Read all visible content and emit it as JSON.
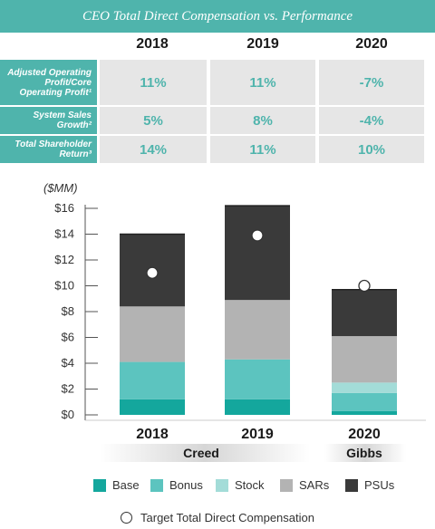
{
  "banner": {
    "title": "CEO Total Direct Compensation vs. Performance"
  },
  "performance_table": {
    "years": [
      "2018",
      "2019",
      "2020"
    ],
    "rows": [
      {
        "label": "Adjusted Operating Profit/Core Operating Profit¹",
        "values": [
          "11%",
          "11%",
          "-7%"
        ]
      },
      {
        "label": "System Sales Growth²",
        "values": [
          "5%",
          "8%",
          "-4%"
        ]
      },
      {
        "label": "Total Shareholder Return³",
        "values": [
          "14%",
          "11%",
          "10%"
        ]
      }
    ]
  },
  "chart_data": {
    "type": "bar",
    "stacked": true,
    "ylabel": "($MM)",
    "ylim": [
      0,
      16
    ],
    "yticks": [
      "$0",
      "$2",
      "$4",
      "$6",
      "$8",
      "$10",
      "$12",
      "$14",
      "$16"
    ],
    "categories": [
      "2018",
      "2019",
      "2020"
    ],
    "ceo_groups": [
      {
        "name": "Creed",
        "categories": [
          "2018",
          "2019"
        ]
      },
      {
        "name": "Gibbs",
        "categories": [
          "2020"
        ]
      }
    ],
    "series": [
      {
        "name": "Base",
        "color": "#14a79d",
        "values": [
          1.2,
          1.2,
          0.3
        ]
      },
      {
        "name": "Bonus",
        "color": "#5cc4bf",
        "values": [
          2.9,
          3.1,
          1.4
        ]
      },
      {
        "name": "Stock",
        "color": "#a3dcd8",
        "values": [
          0,
          0,
          0.8
        ]
      },
      {
        "name": "SARs",
        "color": "#b3b3b3",
        "values": [
          4.3,
          4.6,
          3.6
        ]
      },
      {
        "name": "PSUs",
        "color": "#3a3a3a",
        "values": [
          5.6,
          7.3,
          3.6
        ]
      }
    ],
    "target_total_direct_compensation": [
      11.0,
      13.9,
      10.0
    ],
    "grid": false,
    "legend_position": "bottom"
  },
  "legend": {
    "items": [
      {
        "label": "Base",
        "color": "#14a79d"
      },
      {
        "label": "Bonus",
        "color": "#5cc4bf"
      },
      {
        "label": "Stock",
        "color": "#a3dcd8"
      },
      {
        "label": "SARs",
        "color": "#b3b3b3"
      },
      {
        "label": "PSUs",
        "color": "#3a3a3a"
      }
    ],
    "target_label": "Target Total Direct Compensation"
  }
}
